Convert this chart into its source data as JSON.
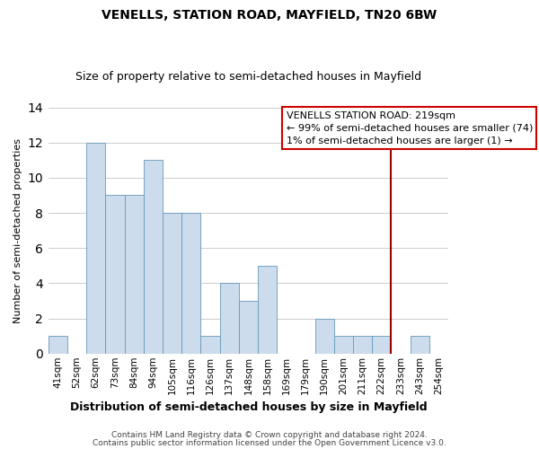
{
  "title": "VENELLS, STATION ROAD, MAYFIELD, TN20 6BW",
  "subtitle": "Size of property relative to semi-detached houses in Mayfield",
  "xlabel": "Distribution of semi-detached houses by size in Mayfield",
  "ylabel": "Number of semi-detached properties",
  "bins": [
    "41sqm",
    "52sqm",
    "62sqm",
    "73sqm",
    "84sqm",
    "94sqm",
    "105sqm",
    "116sqm",
    "126sqm",
    "137sqm",
    "148sqm",
    "158sqm",
    "169sqm",
    "179sqm",
    "190sqm",
    "201sqm",
    "211sqm",
    "222sqm",
    "233sqm",
    "243sqm",
    "254sqm"
  ],
  "counts": [
    1,
    0,
    12,
    9,
    9,
    11,
    8,
    8,
    1,
    4,
    3,
    5,
    0,
    0,
    2,
    1,
    1,
    1,
    0,
    1,
    0
  ],
  "bar_color": "#ccdcec",
  "bar_edge_color": "#6699bb",
  "vline_x_index": 17,
  "vline_color": "#990000",
  "annotation_title": "VENELLS STATION ROAD: 219sqm",
  "annotation_line1": "← 99% of semi-detached houses are smaller (74)",
  "annotation_line2": "1% of semi-detached houses are larger (1) →",
  "annotation_box_facecolor": "#ffffff",
  "annotation_box_edgecolor": "#cc0000",
  "ylim": [
    0,
    14
  ],
  "yticks": [
    0,
    2,
    4,
    6,
    8,
    10,
    12,
    14
  ],
  "footer1": "Contains HM Land Registry data © Crown copyright and database right 2024.",
  "footer2": "Contains public sector information licensed under the Open Government Licence v3.0.",
  "background_color": "#ffffff",
  "grid_color": "#cccccc",
  "title_fontsize": 10,
  "subtitle_fontsize": 9,
  "xlabel_fontsize": 9,
  "ylabel_fontsize": 8,
  "tick_fontsize": 7.5,
  "footer_fontsize": 6.5,
  "annotation_fontsize": 8
}
